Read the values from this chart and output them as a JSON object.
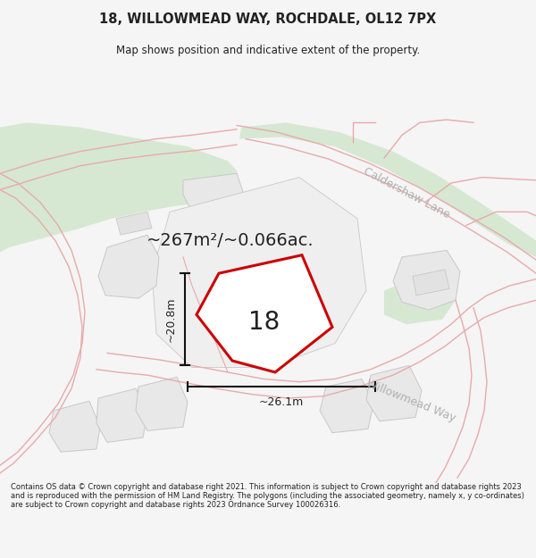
{
  "title": "18, WILLOWMEAD WAY, ROCHDALE, OL12 7PX",
  "subtitle": "Map shows position and indicative extent of the property.",
  "footer": "Contains OS data © Crown copyright and database right 2021. This information is subject to Crown copyright and database rights 2023 and is reproduced with the permission of HM Land Registry. The polygons (including the associated geometry, namely x, y co-ordinates) are subject to Crown copyright and database rights 2023 Ordnance Survey 100026316.",
  "area_text": "~267m²/~0.066ac.",
  "label_18": "18",
  "dim_height": "~20.8m",
  "dim_width": "~26.1m",
  "road_label1": "Caldershaw Lane",
  "road_label2": "Willowmead Way",
  "bg_color": "#f5f5f5",
  "map_bg": "#ffffff",
  "green_color": "#d6e8d2",
  "plot_outline_color": "#cc0000",
  "plot_fill_color": "#ffffff",
  "neighbor_fill": "#e8e8e8",
  "neighbor_outline": "#c8c8c8",
  "road_line_color": "#e8aaaa",
  "dim_line_color": "#111111",
  "text_color": "#222222",
  "road_text_color": "#b0b0b0",
  "title_fontsize": 10.5,
  "subtitle_fontsize": 8.5,
  "footer_fontsize": 6.0,
  "area_fontsize": 14,
  "label_fontsize": 20,
  "dim_fontsize": 9,
  "road_fontsize": 9
}
